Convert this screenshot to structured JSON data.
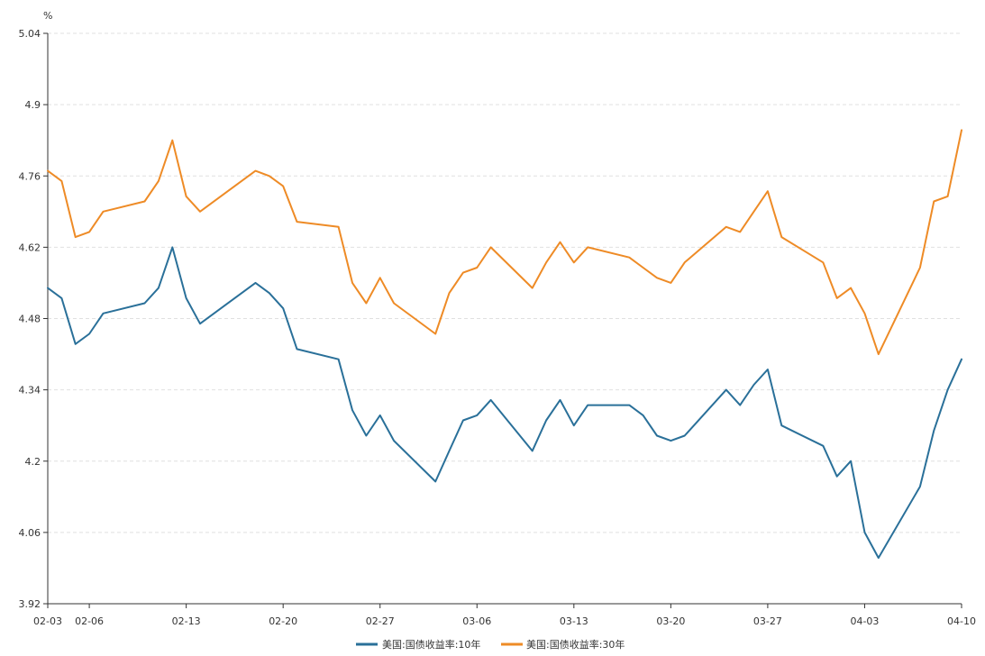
{
  "chart_data": {
    "type": "line",
    "unit": "%",
    "ylim": [
      3.92,
      5.04
    ],
    "yticks": [
      "3.92",
      "4.06",
      "4.2",
      "4.34",
      "4.48",
      "4.62",
      "4.76",
      "4.9",
      "5.04"
    ],
    "x_tick_labels": [
      "02-03",
      "02-06",
      "02-13",
      "02-20",
      "02-27",
      "03-06",
      "03-13",
      "03-20",
      "03-27",
      "04-03",
      "04-10"
    ],
    "x_range": [
      "2025-02-03",
      "2025-04-10"
    ],
    "grid": "horizontal-dashed",
    "legend_position": "bottom-center",
    "series": [
      {
        "name": "美国:国债收益率:10年",
        "color": "#2a7099",
        "points": [
          [
            "2025-02-03",
            4.54
          ],
          [
            "2025-02-04",
            4.52
          ],
          [
            "2025-02-05",
            4.43
          ],
          [
            "2025-02-06",
            4.45
          ],
          [
            "2025-02-07",
            4.49
          ],
          [
            "2025-02-10",
            4.51
          ],
          [
            "2025-02-11",
            4.54
          ],
          [
            "2025-02-12",
            4.62
          ],
          [
            "2025-02-13",
            4.52
          ],
          [
            "2025-02-14",
            4.47
          ],
          [
            "2025-02-18",
            4.55
          ],
          [
            "2025-02-19",
            4.53
          ],
          [
            "2025-02-20",
            4.5
          ],
          [
            "2025-02-21",
            4.42
          ],
          [
            "2025-02-24",
            4.4
          ],
          [
            "2025-02-25",
            4.3
          ],
          [
            "2025-02-26",
            4.25
          ],
          [
            "2025-02-27",
            4.29
          ],
          [
            "2025-02-28",
            4.24
          ],
          [
            "2025-03-03",
            4.16
          ],
          [
            "2025-03-04",
            4.22
          ],
          [
            "2025-03-05",
            4.28
          ],
          [
            "2025-03-06",
            4.29
          ],
          [
            "2025-03-07",
            4.32
          ],
          [
            "2025-03-10",
            4.22
          ],
          [
            "2025-03-11",
            4.28
          ],
          [
            "2025-03-12",
            4.32
          ],
          [
            "2025-03-13",
            4.27
          ],
          [
            "2025-03-14",
            4.31
          ],
          [
            "2025-03-17",
            4.31
          ],
          [
            "2025-03-18",
            4.29
          ],
          [
            "2025-03-19",
            4.25
          ],
          [
            "2025-03-20",
            4.24
          ],
          [
            "2025-03-21",
            4.25
          ],
          [
            "2025-03-24",
            4.34
          ],
          [
            "2025-03-25",
            4.31
          ],
          [
            "2025-03-26",
            4.35
          ],
          [
            "2025-03-27",
            4.38
          ],
          [
            "2025-03-28",
            4.27
          ],
          [
            "2025-03-31",
            4.23
          ],
          [
            "2025-04-01",
            4.17
          ],
          [
            "2025-04-02",
            4.2
          ],
          [
            "2025-04-03",
            4.06
          ],
          [
            "2025-04-04",
            4.01
          ],
          [
            "2025-04-07",
            4.15
          ],
          [
            "2025-04-08",
            4.26
          ],
          [
            "2025-04-09",
            4.34
          ],
          [
            "2025-04-10",
            4.4
          ]
        ]
      },
      {
        "name": "美国:国债收益率:30年",
        "color": "#ee8b26",
        "points": [
          [
            "2025-02-03",
            4.77
          ],
          [
            "2025-02-04",
            4.75
          ],
          [
            "2025-02-05",
            4.64
          ],
          [
            "2025-02-06",
            4.65
          ],
          [
            "2025-02-07",
            4.69
          ],
          [
            "2025-02-10",
            4.71
          ],
          [
            "2025-02-11",
            4.75
          ],
          [
            "2025-02-12",
            4.83
          ],
          [
            "2025-02-13",
            4.72
          ],
          [
            "2025-02-14",
            4.69
          ],
          [
            "2025-02-18",
            4.77
          ],
          [
            "2025-02-19",
            4.76
          ],
          [
            "2025-02-20",
            4.74
          ],
          [
            "2025-02-21",
            4.67
          ],
          [
            "2025-02-24",
            4.66
          ],
          [
            "2025-02-25",
            4.55
          ],
          [
            "2025-02-26",
            4.51
          ],
          [
            "2025-02-27",
            4.56
          ],
          [
            "2025-02-28",
            4.51
          ],
          [
            "2025-03-03",
            4.45
          ],
          [
            "2025-03-04",
            4.53
          ],
          [
            "2025-03-05",
            4.57
          ],
          [
            "2025-03-06",
            4.58
          ],
          [
            "2025-03-07",
            4.62
          ],
          [
            "2025-03-10",
            4.54
          ],
          [
            "2025-03-11",
            4.59
          ],
          [
            "2025-03-12",
            4.63
          ],
          [
            "2025-03-13",
            4.59
          ],
          [
            "2025-03-14",
            4.62
          ],
          [
            "2025-03-17",
            4.6
          ],
          [
            "2025-03-18",
            4.58
          ],
          [
            "2025-03-19",
            4.56
          ],
          [
            "2025-03-20",
            4.55
          ],
          [
            "2025-03-21",
            4.59
          ],
          [
            "2025-03-24",
            4.66
          ],
          [
            "2025-03-25",
            4.65
          ],
          [
            "2025-03-26",
            4.69
          ],
          [
            "2025-03-27",
            4.73
          ],
          [
            "2025-03-28",
            4.64
          ],
          [
            "2025-03-31",
            4.59
          ],
          [
            "2025-04-01",
            4.52
          ],
          [
            "2025-04-02",
            4.54
          ],
          [
            "2025-04-03",
            4.49
          ],
          [
            "2025-04-04",
            4.41
          ],
          [
            "2025-04-07",
            4.58
          ],
          [
            "2025-04-08",
            4.71
          ],
          [
            "2025-04-09",
            4.72
          ],
          [
            "2025-04-10",
            4.85
          ]
        ]
      }
    ]
  }
}
